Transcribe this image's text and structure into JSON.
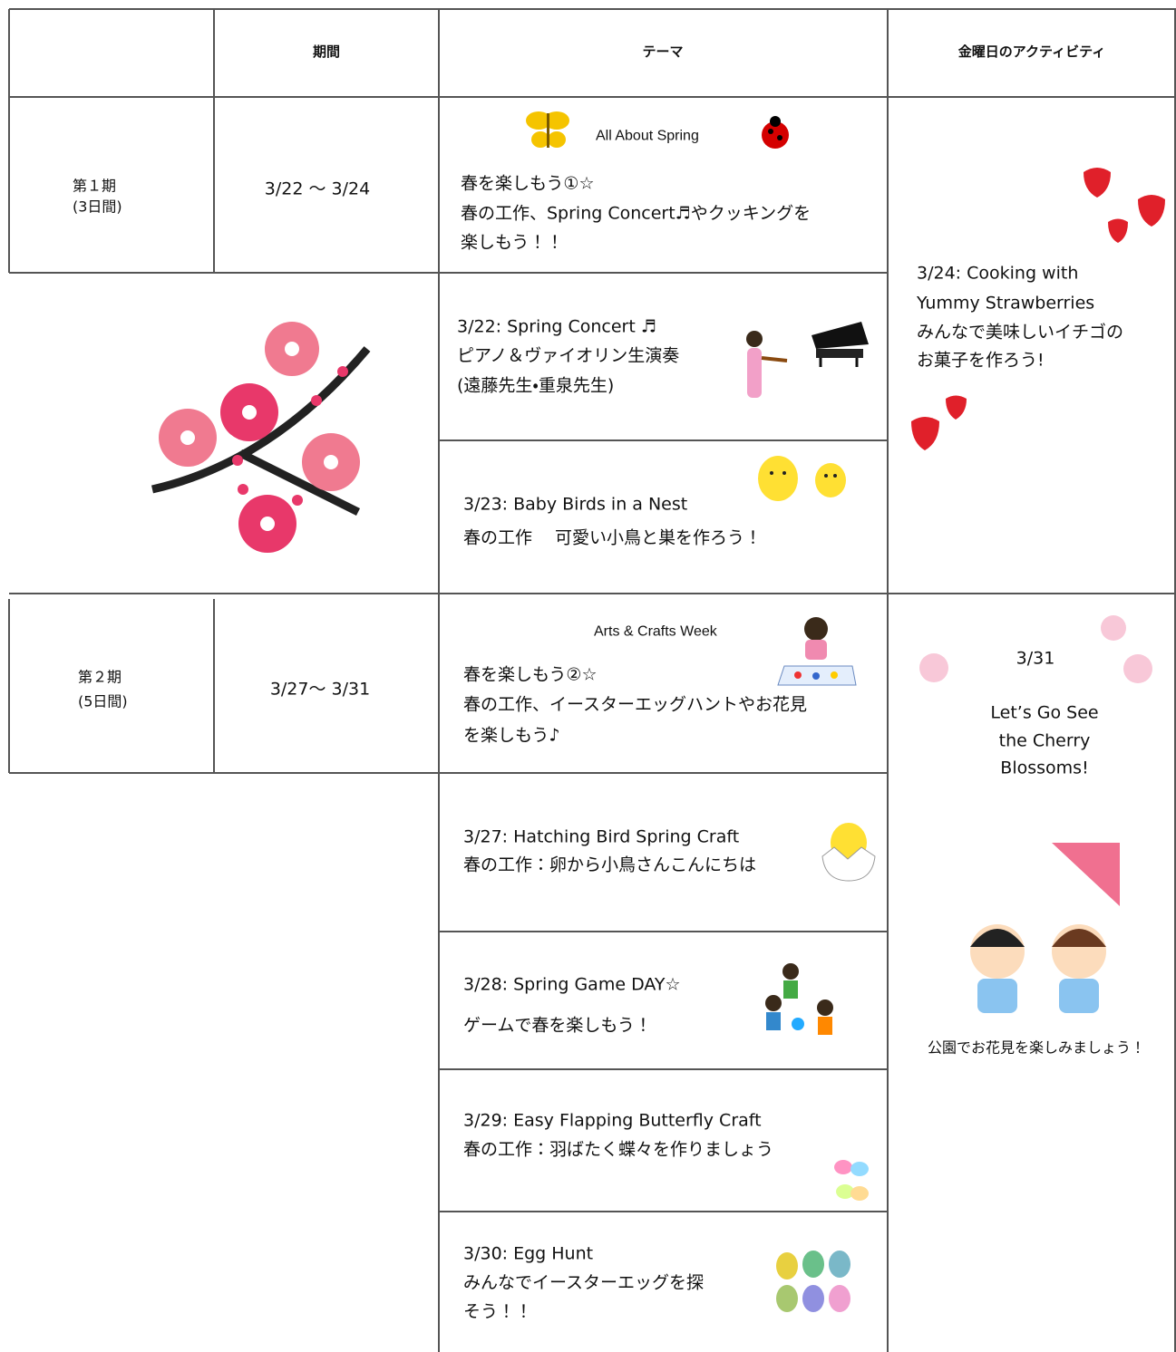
{
  "header": {
    "period": "期間",
    "theme": "テーマ",
    "friday": "金曜日のアクティビティ"
  },
  "terms": [
    {
      "name": "第１期",
      "days": "(3日間)",
      "dates": "3/22 ～ 3/24"
    },
    {
      "name": "第２期",
      "days": "(5日間)",
      "dates": "3/27～ 3/31"
    }
  ],
  "weeks": [
    {
      "banner": "All About Spring",
      "lines": [
        "春を楽しもう①☆",
        "春の工作、Spring Concert♬やクッキングを",
        "楽しもう！！"
      ]
    },
    {
      "banner": "Arts & Crafts Week",
      "lines": [
        "春を楽しもう②☆",
        "春の工作、イースターエッグハントやお花見",
        "を楽しもう♪"
      ]
    }
  ],
  "days": [
    {
      "title": "3/22: Spring Concert ♬",
      "lines": [
        "ピアノ＆ヴァイオリン生演奏",
        "(遠藤先生・重泉先生)"
      ]
    },
    {
      "title": "3/23: Baby Birds in a Nest",
      "lines": [
        "春の工作　 可愛い小鳥と巣を作ろう！"
      ]
    },
    {
      "title": "3/27: Hatching Bird Spring Craft",
      "lines": [
        "春の工作：卵から小鳥さんこんにちは"
      ]
    },
    {
      "title": "3/28: Spring Game DAY☆",
      "lines": [
        "ゲームで春を楽しもう！"
      ]
    },
    {
      "title": "3/29: Easy Flapping Butterfly Craft",
      "lines": [
        "春の工作：羽ばたく蝶々を作りましょう"
      ]
    },
    {
      "title": "3/30: Egg Hunt",
      "lines": [
        "みんなでイースターエッグを探",
        "そう！！"
      ]
    }
  ],
  "friday": [
    {
      "lines": [
        "3/24: Cooking with",
        "Yummy Strawberries",
        "みんなで美味しいイチゴの",
        "お菓子を作ろう!"
      ]
    },
    {
      "date": "3/31",
      "lines": [
        "Let’s Go See",
        "the Cherry",
        "Blossoms!"
      ],
      "note": "公園でお花見を楽しみましょう！"
    }
  ]
}
